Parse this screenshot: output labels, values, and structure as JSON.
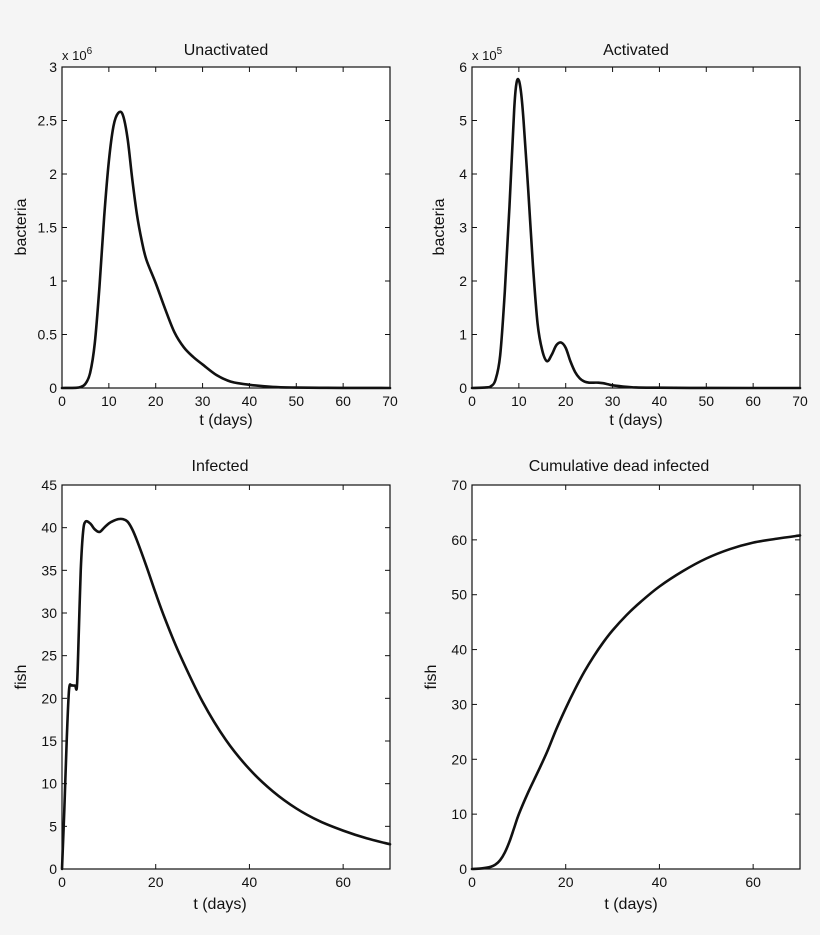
{
  "chart_data": [
    {
      "type": "line",
      "title": "Unactivated",
      "xlabel": "t (days)",
      "ylabel": "bacteria",
      "y_exponent": {
        "base": "x 10",
        "power": "6"
      },
      "xlim": [
        0,
        70
      ],
      "ylim": [
        0,
        3
      ],
      "xticks": [
        0,
        10,
        20,
        30,
        40,
        50,
        60,
        70
      ],
      "xtick_labels": [
        "0",
        "10",
        "20",
        "30",
        "40",
        "50",
        "60",
        "70"
      ],
      "yticks": [
        0,
        0.5,
        1,
        1.5,
        2,
        2.5,
        3
      ],
      "ytick_labels": [
        "0",
        "0.5",
        "1",
        "1.5",
        "2",
        "2.5",
        "3"
      ],
      "series": [
        {
          "name": "Unactivated",
          "x": [
            0,
            3,
            4,
            5,
            6,
            7,
            8,
            9,
            10,
            11,
            12,
            13,
            14,
            15,
            16,
            17,
            18,
            20,
            22,
            24,
            26,
            28,
            30,
            33,
            36,
            40,
            45,
            50,
            55,
            60,
            70
          ],
          "y": [
            0,
            0.002,
            0.01,
            0.04,
            0.14,
            0.42,
            0.95,
            1.6,
            2.12,
            2.45,
            2.57,
            2.55,
            2.33,
            1.95,
            1.62,
            1.38,
            1.2,
            0.98,
            0.74,
            0.52,
            0.38,
            0.29,
            0.22,
            0.12,
            0.06,
            0.03,
            0.01,
            0.004,
            0.002,
            0.001,
            0
          ]
        }
      ]
    },
    {
      "type": "line",
      "title": "Activated",
      "xlabel": "t (days)",
      "ylabel": "bacteria",
      "y_exponent": {
        "base": "x 10",
        "power": "5"
      },
      "xlim": [
        0,
        70
      ],
      "ylim": [
        0,
        6
      ],
      "xticks": [
        0,
        10,
        20,
        30,
        40,
        50,
        60,
        70
      ],
      "xtick_labels": [
        "0",
        "10",
        "20",
        "30",
        "40",
        "50",
        "60",
        "70"
      ],
      "yticks": [
        0,
        1,
        2,
        3,
        4,
        5,
        6
      ],
      "ytick_labels": [
        "0",
        "1",
        "2",
        "3",
        "4",
        "5",
        "6"
      ],
      "series": [
        {
          "name": "Activated",
          "x": [
            0,
            3,
            4,
            5,
            6,
            7,
            8,
            9,
            9.5,
            10,
            10.5,
            11,
            12,
            13,
            14,
            15,
            16,
            17,
            18,
            19,
            20,
            21,
            22,
            23,
            24,
            25,
            26,
            27,
            28,
            29,
            30,
            32,
            35,
            40,
            50,
            60,
            70
          ],
          "y": [
            0,
            0.01,
            0.03,
            0.15,
            0.6,
            1.8,
            3.4,
            5.2,
            5.7,
            5.75,
            5.5,
            5.0,
            3.7,
            2.3,
            1.2,
            0.7,
            0.5,
            0.62,
            0.8,
            0.85,
            0.75,
            0.5,
            0.3,
            0.18,
            0.12,
            0.1,
            0.1,
            0.1,
            0.09,
            0.07,
            0.05,
            0.03,
            0.01,
            0.005,
            0.001,
            0,
            0
          ]
        }
      ]
    },
    {
      "type": "line",
      "title": "Infected",
      "xlabel": "t (days)",
      "ylabel": "fish",
      "xlim": [
        0,
        70
      ],
      "ylim": [
        0,
        45
      ],
      "xticks": [
        0,
        20,
        40,
        60
      ],
      "xtick_labels": [
        "0",
        "20",
        "40",
        "60"
      ],
      "yticks": [
        0,
        5,
        10,
        15,
        20,
        25,
        30,
        35,
        40,
        45
      ],
      "ytick_labels": [
        "0",
        "5",
        "10",
        "15",
        "20",
        "25",
        "30",
        "35",
        "40",
        "45"
      ],
      "series": [
        {
          "name": "Infected",
          "x": [
            0,
            0.5,
            1,
            1.5,
            2,
            2.3,
            2.8,
            3.2,
            3.6,
            4,
            4.5,
            5,
            6,
            7,
            8,
            9,
            10,
            11,
            12,
            13,
            14,
            15,
            16,
            18,
            20,
            22,
            25,
            30,
            35,
            40,
            45,
            50,
            55,
            60,
            65,
            70
          ],
          "y": [
            0,
            7,
            15,
            21,
            21.5,
            21.5,
            21.5,
            21.5,
            28,
            35,
            39.5,
            40.7,
            40.5,
            39.8,
            39.5,
            40,
            40.5,
            40.8,
            41,
            41,
            40.7,
            39.8,
            38.5,
            35.5,
            32.3,
            29.3,
            25.3,
            19.6,
            15.1,
            11.7,
            9.1,
            7.1,
            5.6,
            4.5,
            3.6,
            2.9
          ]
        }
      ]
    },
    {
      "type": "line",
      "title": "Cumulative dead infected",
      "xlabel": "t (days)",
      "ylabel": "fish",
      "xlim": [
        0,
        70
      ],
      "ylim": [
        0,
        70
      ],
      "xticks": [
        0,
        20,
        40,
        60
      ],
      "xtick_labels": [
        "0",
        "20",
        "40",
        "60"
      ],
      "yticks": [
        0,
        10,
        20,
        30,
        40,
        50,
        60,
        70
      ],
      "ytick_labels": [
        "0",
        "10",
        "20",
        "30",
        "40",
        "50",
        "60",
        "70"
      ],
      "series": [
        {
          "name": "Cumulative dead infected",
          "x": [
            0,
            2,
            4,
            5,
            6,
            7,
            8,
            9,
            10,
            12,
            14,
            16,
            18,
            20,
            22,
            24,
            26,
            28,
            30,
            33,
            36,
            40,
            45,
            50,
            55,
            60,
            65,
            70
          ],
          "y": [
            0,
            0.1,
            0.4,
            0.8,
            1.6,
            3,
            5,
            7.5,
            10,
            14,
            17.6,
            21.3,
            25.5,
            29.3,
            32.8,
            36,
            38.8,
            41.3,
            43.5,
            46.3,
            48.7,
            51.5,
            54.3,
            56.6,
            58.3,
            59.5,
            60.2,
            60.8
          ]
        }
      ]
    }
  ]
}
